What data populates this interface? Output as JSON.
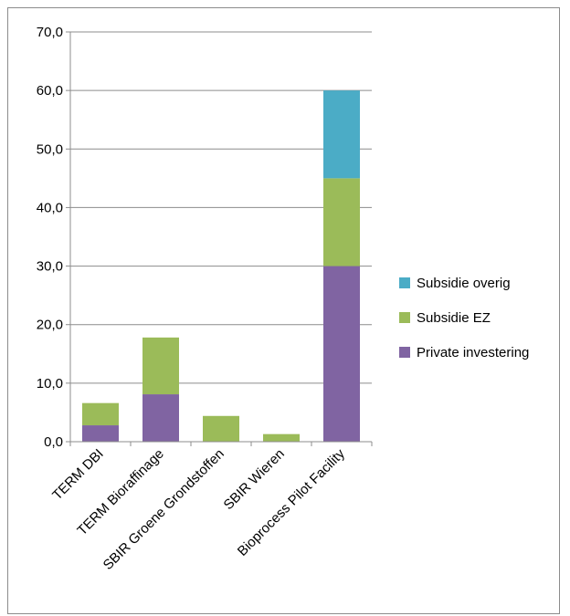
{
  "chart_data": {
    "type": "bar",
    "stacked": true,
    "categories": [
      "TERM DBI",
      "TERM Bioraffinage",
      "SBIR Groene Grondstoffen",
      "SBIR Wieren",
      "Bioprocess Pilot Facility"
    ],
    "series": [
      {
        "name": "Private investering",
        "color": "#8064a2",
        "values": [
          2.8,
          8.1,
          0,
          0,
          30.0
        ]
      },
      {
        "name": "Subsidie EZ",
        "color": "#9bbb59",
        "values": [
          3.8,
          9.7,
          4.4,
          1.3,
          15.0
        ]
      },
      {
        "name": "Subsidie overig",
        "color": "#4bacc6",
        "values": [
          0,
          0,
          0,
          0,
          15.0
        ]
      }
    ],
    "ylim": [
      0,
      70
    ],
    "yticks": [
      "0,0",
      "10,0",
      "20,0",
      "30,0",
      "40,0",
      "50,0",
      "60,0",
      "70,0"
    ],
    "grid": true,
    "legend_position": "right",
    "legend_order": [
      "Subsidie overig",
      "Subsidie EZ",
      "Private investering"
    ],
    "title": "",
    "xlabel": "",
    "ylabel": ""
  }
}
